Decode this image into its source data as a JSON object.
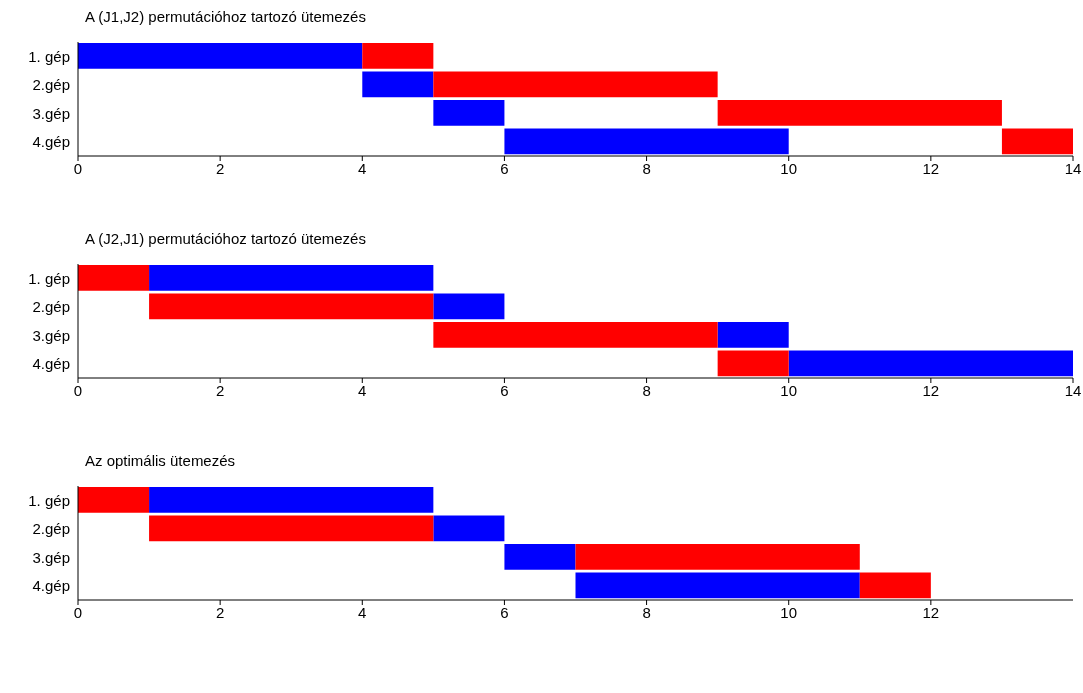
{
  "chart_data": [
    {
      "type": "bar",
      "orientation": "horizontal",
      "title": "A (J1,J2) permutációhoz tartozó ütemezés",
      "categories": [
        "1. gép",
        "2.gép",
        "3.gép",
        "4.gép"
      ],
      "xlim": [
        0,
        14
      ],
      "xticks": [
        0,
        2,
        4,
        6,
        8,
        10,
        12,
        14
      ],
      "grid": false,
      "legend": false,
      "series": [
        {
          "color": "#0000ff",
          "base": [
            0,
            4,
            5,
            6
          ],
          "values": [
            4,
            1,
            1,
            4
          ]
        },
        {
          "color": "#ff0000",
          "base": [
            4,
            5,
            9,
            13
          ],
          "values": [
            1,
            4,
            4,
            1
          ]
        }
      ]
    },
    {
      "type": "bar",
      "orientation": "horizontal",
      "title": "A (J2,J1) permutációhoz tartozó ütemezés",
      "categories": [
        "1. gép",
        "2.gép",
        "3.gép",
        "4.gép"
      ],
      "xlim": [
        0,
        14
      ],
      "xticks": [
        0,
        2,
        4,
        6,
        8,
        10,
        12,
        14
      ],
      "grid": false,
      "legend": false,
      "series": [
        {
          "color": "#0000ff",
          "base": [
            1,
            5,
            9,
            10
          ],
          "values": [
            4,
            1,
            1,
            4
          ]
        },
        {
          "color": "#ff0000",
          "base": [
            0,
            1,
            5,
            9
          ],
          "values": [
            1,
            4,
            4,
            1
          ]
        }
      ]
    },
    {
      "type": "bar",
      "orientation": "horizontal",
      "title": "Az optimális ütemezés",
      "categories": [
        "1. gép",
        "2.gép",
        "3.gép",
        "4.gép"
      ],
      "xlim": [
        0,
        14
      ],
      "xticks": [
        0,
        2,
        4,
        6,
        8,
        10,
        12
      ],
      "grid": false,
      "legend": false,
      "series": [
        {
          "color": "#0000ff",
          "base": [
            1,
            5,
            6,
            7
          ],
          "values": [
            4,
            1,
            1,
            4
          ]
        },
        {
          "color": "#ff0000",
          "base": [
            0,
            1,
            7,
            11
          ],
          "values": [
            1,
            4,
            4,
            1
          ]
        }
      ]
    }
  ]
}
